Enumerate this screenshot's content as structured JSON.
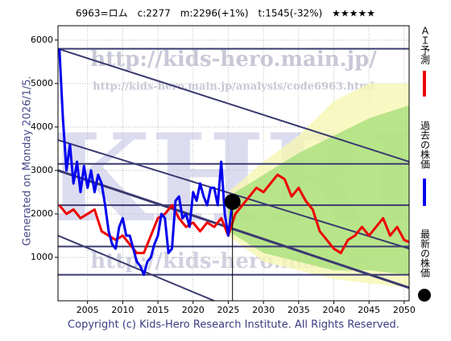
{
  "chart_data": {
    "type": "line",
    "title": "6963=ロム　c:2277　m:2296(+1%)　t:1545(-32%)　★★★★★",
    "side_note": "Generated on Monday 2026/1/5.",
    "footer": "Copyright (c) Kids-Hero Research Institute. All Rights Reserved.",
    "watermarks": [
      "http://kids-hero.main.jp/",
      "http://kids-hero.main.jp/analysis/code6963.html",
      "KHRI"
    ],
    "xlim": [
      2000.8,
      2050.7
    ],
    "ylim": [
      0,
      6330
    ],
    "xticks": [
      2005,
      2010,
      2015,
      2020,
      2025,
      2030,
      2035,
      2040,
      2045,
      2050
    ],
    "yticks": [
      1000,
      2000,
      3000,
      4000,
      5000,
      6000
    ],
    "grid": true,
    "bands": [
      {
        "color": "#f6f6b4",
        "x": [
          2025,
          2030,
          2035,
          2040,
          2045,
          2050.7
        ],
        "upper": [
          2500,
          3200,
          3800,
          4600,
          5000,
          5000
        ],
        "lower": [
          1500,
          900,
          700,
          500,
          400,
          300
        ]
      },
      {
        "color": "#a8e07a",
        "x": [
          2025,
          2030,
          2035,
          2040,
          2045,
          2050.7
        ],
        "upper": [
          2400,
          2900,
          3400,
          3800,
          4200,
          4500
        ],
        "lower": [
          1600,
          1100,
          900,
          700,
          700,
          600
        ]
      }
    ],
    "trend_lines": [
      {
        "color": "#3a3a70",
        "width": 2,
        "x": [
          2000.8,
          2050.7
        ],
        "values": [
          5800,
          3200
        ]
      },
      {
        "color": "#3a3a70",
        "width": 2,
        "x": [
          2000.8,
          2050.7
        ],
        "values": [
          3700,
          1200
        ]
      },
      {
        "color": "#3a3a70",
        "width": 3,
        "x": [
          2000.8,
          2050.7
        ],
        "values": [
          3000,
          300
        ]
      },
      {
        "color": "#3a3a70",
        "width": 2,
        "x": [
          2000.8,
          2023
        ],
        "values": [
          1500,
          0
        ]
      },
      {
        "color": "#3a3a70",
        "width": 2,
        "x": [
          2000.8,
          2050.7
        ],
        "values": [
          5800,
          5800
        ]
      },
      {
        "color": "#3a3a70",
        "width": 2,
        "x": [
          2000.8,
          2050.7
        ],
        "values": [
          3150,
          3150
        ]
      },
      {
        "color": "#3a3a70",
        "width": 2,
        "x": [
          2000.8,
          2050.7
        ],
        "values": [
          2200,
          2200
        ]
      },
      {
        "color": "#3a3a70",
        "width": 2,
        "x": [
          2000.8,
          2050.7
        ],
        "values": [
          1250,
          1250
        ]
      },
      {
        "color": "#3a3a70",
        "width": 2,
        "x": [
          2000.8,
          2050.7
        ],
        "values": [
          600,
          600
        ]
      }
    ],
    "series": [
      {
        "name": "ＡＩ予測",
        "color": "#ee0000",
        "x": [
          2001,
          2002,
          2003,
          2004,
          2005,
          2006,
          2007,
          2008,
          2009,
          2010,
          2011,
          2012,
          2013,
          2014,
          2015,
          2016,
          2017,
          2018,
          2019,
          2020,
          2021,
          2022,
          2023,
          2024,
          2025,
          2026,
          2027,
          2028,
          2029,
          2030,
          2031,
          2032,
          2033,
          2034,
          2035,
          2036,
          2037,
          2038,
          2039,
          2040,
          2041,
          2042,
          2043,
          2044,
          2045,
          2046,
          2047,
          2048,
          2049,
          2050,
          2050.7
        ],
        "values": [
          2200,
          2000,
          2100,
          1900,
          2000,
          2100,
          1600,
          1500,
          1400,
          1500,
          1300,
          1100,
          1100,
          1500,
          1900,
          2000,
          2200,
          1900,
          1700,
          1800,
          1600,
          1800,
          1700,
          1900,
          1500,
          2000,
          2200,
          2400,
          2600,
          2500,
          2700,
          2900,
          2800,
          2400,
          2600,
          2300,
          2100,
          1600,
          1400,
          1200,
          1100,
          1400,
          1500,
          1700,
          1500,
          1700,
          1900,
          1500,
          1700,
          1400,
          1350
        ]
      },
      {
        "name": "過去の株価",
        "color": "#0000ee",
        "x": [
          2001,
          2001.5,
          2002,
          2002.5,
          2003,
          2003.5,
          2004,
          2004.5,
          2005,
          2005.5,
          2006,
          2006.5,
          2007,
          2007.5,
          2008,
          2008.5,
          2009,
          2009.5,
          2010,
          2010.5,
          2011,
          2011.5,
          2012,
          2012.5,
          2013,
          2013.5,
          2014,
          2014.5,
          2015,
          2015.5,
          2016,
          2016.5,
          2017,
          2017.5,
          2018,
          2018.5,
          2019,
          2019.5,
          2020,
          2020.5,
          2021,
          2021.5,
          2022,
          2022.5,
          2023,
          2023.5,
          2024,
          2024.5,
          2025,
          2025.6
        ],
        "values": [
          5800,
          4200,
          3000,
          3600,
          2700,
          3200,
          2500,
          3100,
          2600,
          3000,
          2500,
          2900,
          2700,
          2200,
          1600,
          1300,
          1200,
          1700,
          1900,
          1500,
          1500,
          1200,
          900,
          800,
          600,
          900,
          1000,
          1300,
          1500,
          2000,
          1900,
          1100,
          1200,
          2300,
          2400,
          1900,
          2000,
          1700,
          2500,
          2300,
          2700,
          2400,
          2200,
          2600,
          2600,
          2200,
          3200,
          2000,
          1500,
          2277
        ]
      },
      {
        "name": "最新の株価",
        "color": "#000000",
        "x": [
          2025.6
        ],
        "values": [
          2277
        ]
      }
    ]
  }
}
